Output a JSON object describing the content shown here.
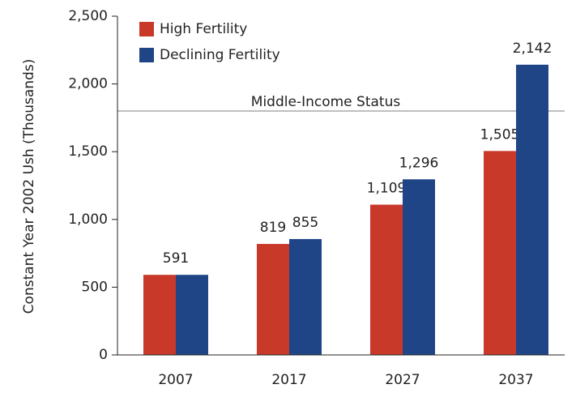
{
  "chart_data": {
    "type": "bar",
    "y_label": "Constant Year 2002 Ush (Thousands)",
    "categories": [
      "2007",
      "2017",
      "2027",
      "2037"
    ],
    "series": [
      {
        "name": "High Fertility",
        "color": "#c8392a",
        "values": [
          591,
          819,
          1109,
          1505
        ],
        "value_labels": [
          "591",
          "819",
          "1,109",
          "1,505"
        ]
      },
      {
        "name": "Declining Fertility",
        "color": "#1f4587",
        "values": [
          591,
          855,
          1296,
          2142
        ],
        "value_labels": [
          null,
          "855",
          "1,296",
          "2,142"
        ]
      }
    ],
    "ylim": [
      0,
      2500
    ],
    "yticks": [
      0,
      500,
      {
        "value": 1000,
        "label": "1,000"
      },
      {
        "value": 1500,
        "label": "1,500"
      },
      {
        "value": 2000,
        "label": "2,000"
      },
      {
        "value": 2500,
        "label": "2,500"
      }
    ],
    "reference_line": {
      "value": 1800,
      "label": "Middle-Income Status",
      "color": "#aaaaaa"
    },
    "legend": "top-left"
  }
}
